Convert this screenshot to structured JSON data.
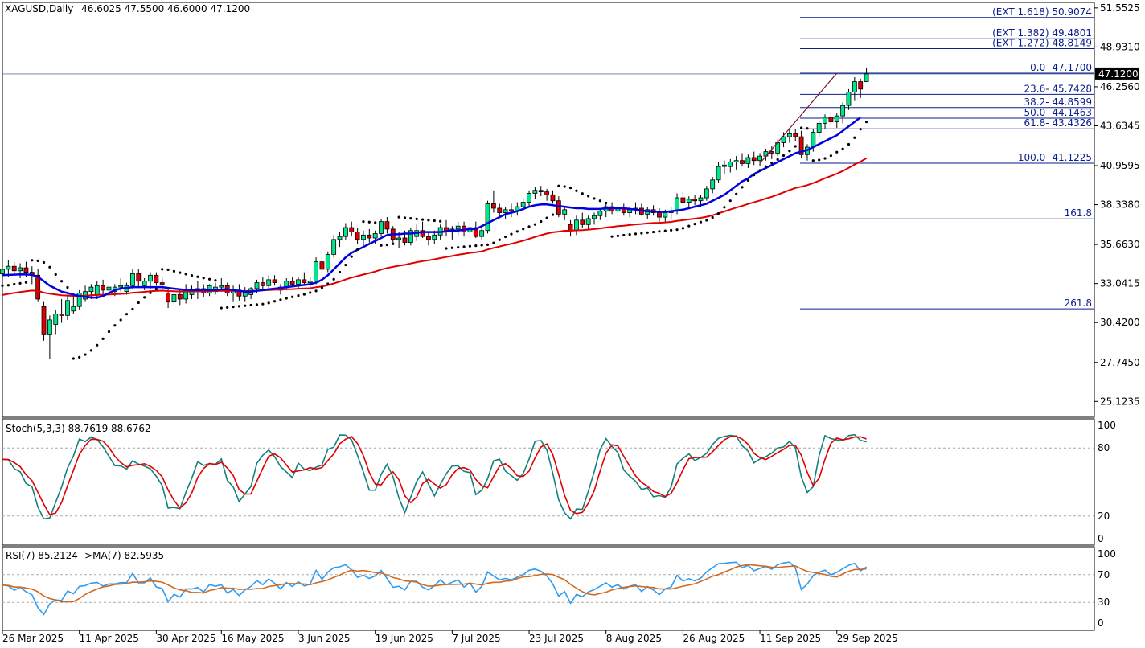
{
  "header": {
    "symbol_tf": "XAGUSD,Daily",
    "ohlc": "46.6025 47.5500 46.6000 47.1200"
  },
  "price_axis": {
    "labels": [
      "51.5525",
      "48.9310",
      "46.2560",
      "43.6345",
      "40.9595",
      "38.3380",
      "35.6630",
      "33.0415",
      "30.4200",
      "27.7450",
      "25.1235"
    ],
    "current_price_label": "47.1200"
  },
  "date_axis": {
    "labels": [
      "26 Mar 2025",
      "11 Apr 2025",
      "30 Apr 2025",
      "16 May 2025",
      "3 Jun 2025",
      "19 Jun 2025",
      "7 Jul 2025",
      "23 Jul 2025",
      "8 Aug 2025",
      "26 Aug 2025",
      "11 Sep 2025",
      "29 Sep 2025"
    ]
  },
  "fibonacci": {
    "levels": [
      {
        "label": "(EXT 1.618)  50.9074",
        "price": 50.9074
      },
      {
        "label": "(EXT 1.382)  49.4801",
        "price": 49.4801
      },
      {
        "label": "(EXT 1.272)  48.8149",
        "price": 48.8149
      },
      {
        "label": "0.0- 47.1700",
        "price": 47.17
      },
      {
        "label": "23.6- 45.7428",
        "price": 45.7428
      },
      {
        "label": "38.2- 44.8599",
        "price": 44.8599
      },
      {
        "label": "50.0- 44.1463",
        "price": 44.1463
      },
      {
        "label": "61.8- 43.4326",
        "price": 43.4326
      },
      {
        "label": "100.0- 41.1225",
        "price": 41.1225
      },
      {
        "label": "161.8",
        "price": 37.385
      },
      {
        "label": "261.8",
        "price": 31.34
      }
    ],
    "color": "#0a1e8c"
  },
  "stoch": {
    "label": "Stoch(5,3,3) 88.7619 88.6762",
    "levels": [
      "100",
      "80",
      "20",
      "0"
    ],
    "main_color": "#138080",
    "signal_color": "#e00000"
  },
  "rsi": {
    "label": "RSI(7) 85.2124  ->MA(7) 82.5935",
    "levels": [
      "100",
      "70",
      "30",
      "0"
    ],
    "rsi_color": "#2f9cf0",
    "ma_color": "#d2691e"
  },
  "colors": {
    "bull_candle": "#00e68a",
    "bear_candle": "#e00000",
    "ma_fast": "#0000e0",
    "ma_slow": "#e00000",
    "sar": "#000000"
  },
  "chart_data": {
    "type": "candlestick",
    "timeframe": "Daily",
    "candles_ohlc": [
      [
        33.7,
        34.3,
        33.3,
        34.0
      ],
      [
        34.0,
        34.6,
        33.5,
        34.2
      ],
      [
        34.2,
        34.5,
        33.6,
        33.9
      ],
      [
        33.9,
        34.4,
        33.4,
        34.1
      ],
      [
        34.1,
        34.5,
        33.5,
        33.8
      ],
      [
        33.8,
        34.2,
        33.0,
        33.6
      ],
      [
        33.6,
        34.0,
        31.8,
        32.0
      ],
      [
        31.5,
        31.8,
        29.2,
        29.6
      ],
      [
        29.6,
        30.9,
        28.0,
        30.6
      ],
      [
        30.3,
        31.3,
        29.6,
        31.0
      ],
      [
        31.0,
        32.0,
        30.4,
        30.9
      ],
      [
        30.9,
        32.3,
        30.6,
        31.9
      ],
      [
        31.2,
        32.4,
        31.0,
        31.5
      ],
      [
        31.5,
        32.6,
        31.3,
        32.4
      ],
      [
        32.0,
        32.9,
        31.8,
        32.5
      ],
      [
        32.5,
        33.0,
        32.0,
        32.8
      ],
      [
        32.3,
        33.2,
        32.0,
        32.9
      ],
      [
        32.9,
        33.3,
        32.3,
        32.6
      ],
      [
        32.6,
        33.1,
        32.2,
        32.8
      ],
      [
        32.5,
        33.0,
        32.2,
        32.8
      ],
      [
        32.8,
        33.4,
        32.5,
        32.9
      ],
      [
        32.5,
        33.1,
        32.3,
        32.9
      ],
      [
        32.9,
        34.0,
        32.7,
        33.7
      ],
      [
        33.7,
        34.0,
        32.8,
        33.2
      ],
      [
        32.9,
        33.4,
        32.6,
        33.2
      ],
      [
        33.2,
        33.8,
        32.7,
        33.6
      ],
      [
        33.6,
        33.8,
        32.9,
        33.1
      ],
      [
        33.1,
        33.4,
        32.6,
        33.0
      ],
      [
        32.4,
        32.7,
        31.4,
        31.8
      ],
      [
        31.8,
        32.8,
        31.6,
        32.3
      ],
      [
        32.3,
        32.6,
        31.6,
        32.0
      ],
      [
        32.0,
        33.0,
        31.7,
        32.6
      ],
      [
        32.3,
        32.9,
        32.0,
        32.6
      ],
      [
        32.6,
        33.2,
        32.0,
        32.7
      ],
      [
        32.7,
        33.0,
        32.1,
        32.4
      ],
      [
        32.4,
        33.0,
        32.2,
        32.9
      ],
      [
        32.5,
        33.1,
        32.3,
        32.8
      ],
      [
        32.8,
        33.4,
        32.5,
        32.9
      ],
      [
        32.9,
        33.1,
        32.2,
        32.4
      ],
      [
        32.4,
        32.9,
        31.8,
        32.6
      ],
      [
        32.6,
        33.0,
        31.9,
        32.2
      ],
      [
        32.2,
        32.8,
        31.8,
        32.5
      ],
      [
        32.3,
        32.8,
        32.0,
        32.7
      ],
      [
        32.7,
        33.3,
        32.4,
        33.1
      ],
      [
        33.1,
        33.5,
        32.6,
        32.9
      ],
      [
        32.9,
        33.6,
        32.7,
        33.3
      ],
      [
        33.3,
        33.6,
        32.9,
        33.1
      ],
      [
        32.6,
        33.0,
        32.3,
        32.8
      ],
      [
        32.8,
        33.4,
        32.6,
        33.2
      ],
      [
        33.2,
        33.5,
        32.8,
        33.0
      ],
      [
        33.0,
        33.5,
        32.7,
        33.3
      ],
      [
        33.3,
        33.8,
        33.0,
        33.1
      ],
      [
        33.1,
        33.5,
        32.8,
        33.2
      ],
      [
        33.2,
        34.8,
        33.0,
        34.5
      ],
      [
        34.5,
        34.9,
        33.8,
        34.0
      ],
      [
        34.0,
        35.2,
        33.8,
        35.0
      ],
      [
        35.0,
        36.3,
        34.8,
        36.0
      ],
      [
        36.0,
        36.5,
        35.5,
        36.2
      ],
      [
        36.2,
        37.1,
        36.0,
        36.8
      ],
      [
        36.8,
        37.2,
        36.2,
        36.5
      ],
      [
        36.5,
        36.8,
        35.7,
        36.0
      ],
      [
        36.0,
        36.6,
        35.6,
        36.3
      ],
      [
        36.3,
        36.7,
        35.8,
        36.1
      ],
      [
        36.1,
        36.6,
        35.7,
        36.4
      ],
      [
        36.4,
        37.4,
        36.2,
        37.2
      ],
      [
        37.2,
        37.5,
        36.4,
        36.7
      ],
      [
        36.7,
        36.9,
        35.8,
        36.0
      ],
      [
        36.0,
        36.5,
        35.4,
        36.1
      ],
      [
        36.1,
        36.6,
        35.6,
        35.8
      ],
      [
        35.8,
        36.8,
        35.6,
        36.6
      ],
      [
        36.2,
        37.0,
        35.9,
        36.6
      ],
      [
        36.6,
        37.2,
        36.1,
        36.2
      ],
      [
        36.2,
        36.5,
        35.6,
        36.0
      ],
      [
        36.0,
        36.6,
        35.7,
        36.3
      ],
      [
        36.3,
        37.0,
        36.0,
        36.8
      ],
      [
        36.8,
        37.3,
        36.2,
        36.5
      ],
      [
        36.5,
        36.9,
        36.0,
        36.7
      ],
      [
        36.7,
        37.2,
        36.3,
        36.9
      ],
      [
        36.9,
        37.2,
        36.2,
        36.5
      ],
      [
        36.5,
        37.1,
        36.3,
        36.8
      ],
      [
        36.8,
        37.2,
        36.1,
        36.2
      ],
      [
        36.2,
        36.9,
        36.0,
        36.6
      ],
      [
        36.6,
        38.6,
        36.4,
        38.4
      ],
      [
        38.4,
        39.3,
        37.8,
        38.1
      ],
      [
        38.1,
        38.4,
        37.5,
        37.8
      ],
      [
        37.8,
        38.2,
        37.4,
        38.0
      ],
      [
        38.0,
        38.4,
        37.5,
        37.9
      ],
      [
        37.9,
        38.5,
        37.6,
        38.2
      ],
      [
        38.2,
        38.8,
        37.9,
        38.5
      ],
      [
        38.5,
        39.3,
        38.2,
        39.1
      ],
      [
        39.1,
        39.5,
        38.7,
        39.3
      ],
      [
        39.3,
        39.6,
        38.9,
        39.2
      ],
      [
        39.2,
        39.4,
        38.6,
        39.0
      ],
      [
        39.0,
        39.3,
        38.4,
        38.6
      ],
      [
        38.6,
        38.9,
        37.5,
        37.7
      ],
      [
        37.7,
        38.2,
        37.3,
        38.0
      ],
      [
        37.0,
        37.3,
        36.2,
        36.6
      ],
      [
        36.6,
        37.6,
        36.3,
        37.3
      ],
      [
        37.3,
        37.8,
        36.8,
        37.0
      ],
      [
        37.0,
        37.6,
        36.7,
        37.4
      ],
      [
        37.4,
        37.8,
        37.0,
        37.6
      ],
      [
        37.6,
        38.1,
        37.3,
        37.9
      ],
      [
        37.9,
        38.4,
        37.5,
        38.2
      ],
      [
        38.2,
        38.5,
        37.7,
        37.9
      ],
      [
        37.9,
        38.3,
        37.5,
        38.1
      ],
      [
        38.1,
        38.4,
        37.6,
        37.8
      ],
      [
        37.8,
        38.2,
        37.5,
        38.0
      ],
      [
        38.0,
        38.5,
        37.7,
        38.1
      ],
      [
        38.1,
        38.4,
        37.6,
        37.7
      ],
      [
        37.7,
        38.2,
        37.4,
        38.0
      ],
      [
        38.0,
        38.3,
        37.6,
        37.8
      ],
      [
        37.8,
        38.1,
        37.2,
        37.5
      ],
      [
        37.5,
        38.0,
        37.2,
        37.8
      ],
      [
        37.8,
        38.2,
        37.4,
        37.9
      ],
      [
        37.9,
        39.1,
        37.7,
        38.8
      ],
      [
        38.8,
        39.2,
        38.3,
        38.5
      ],
      [
        38.5,
        38.9,
        38.2,
        38.7
      ],
      [
        38.7,
        39.0,
        38.3,
        38.6
      ],
      [
        38.6,
        39.0,
        38.2,
        38.8
      ],
      [
        38.8,
        39.6,
        38.6,
        39.4
      ],
      [
        39.4,
        40.2,
        39.1,
        40.0
      ],
      [
        40.0,
        41.2,
        39.8,
        40.9
      ],
      [
        40.9,
        41.3,
        40.4,
        41.0
      ],
      [
        40.9,
        41.4,
        40.5,
        41.2
      ],
      [
        41.2,
        41.6,
        40.7,
        41.3
      ],
      [
        41.3,
        41.8,
        40.9,
        41.1
      ],
      [
        41.1,
        41.7,
        40.8,
        41.5
      ],
      [
        41.5,
        41.9,
        41.0,
        41.3
      ],
      [
        41.3,
        41.8,
        40.9,
        41.6
      ],
      [
        41.6,
        42.1,
        41.3,
        41.9
      ],
      [
        41.9,
        42.3,
        41.4,
        41.8
      ],
      [
        41.8,
        42.7,
        41.6,
        42.5
      ],
      [
        42.5,
        43.2,
        42.2,
        42.9
      ],
      [
        42.9,
        43.5,
        42.5,
        43.1
      ],
      [
        43.1,
        43.4,
        42.6,
        42.9
      ],
      [
        42.9,
        43.3,
        41.5,
        41.7
      ],
      [
        41.7,
        42.4,
        41.3,
        42.2
      ],
      [
        42.2,
        43.4,
        41.9,
        43.2
      ],
      [
        43.2,
        44.0,
        42.9,
        43.8
      ],
      [
        43.8,
        44.4,
        43.4,
        44.2
      ],
      [
        44.2,
        44.6,
        43.7,
        43.9
      ],
      [
        43.9,
        44.5,
        43.5,
        44.3
      ],
      [
        44.3,
        45.2,
        43.8,
        45.0
      ],
      [
        45.0,
        46.1,
        44.7,
        45.9
      ],
      [
        45.9,
        46.9,
        45.3,
        46.6
      ],
      [
        46.6,
        46.8,
        45.5,
        46.1
      ],
      [
        46.6,
        47.55,
        46.6,
        47.12
      ]
    ],
    "moving_average_fast": [
      33.6,
      33.62,
      33.64,
      33.66,
      33.65,
      33.62,
      33.5,
      33.2,
      32.9,
      32.7,
      32.5,
      32.4,
      32.3,
      32.2,
      32.15,
      32.1,
      32.1,
      32.2,
      32.4,
      32.6,
      32.7,
      32.75,
      32.8,
      32.8,
      32.8,
      32.8,
      32.8,
      32.8,
      32.75,
      32.7,
      32.65,
      32.6,
      32.6,
      32.6,
      32.6,
      32.6,
      32.6,
      32.65,
      32.65,
      32.6,
      32.55,
      32.5,
      32.5,
      32.55,
      32.6,
      32.65,
      32.7,
      32.75,
      32.8,
      32.85,
      32.9,
      32.95,
      33.0,
      33.1,
      33.3,
      33.6,
      34.0,
      34.4,
      34.8,
      35.1,
      35.3,
      35.5,
      35.7,
      35.9,
      36.1,
      36.3,
      36.35,
      36.35,
      36.4,
      36.4,
      36.45,
      36.5,
      36.5,
      36.5,
      36.5,
      36.55,
      36.6,
      36.6,
      36.65,
      36.7,
      36.7,
      36.9,
      37.1,
      37.3,
      37.5,
      37.7,
      37.8,
      37.9,
      38.05,
      38.2,
      38.3,
      38.35,
      38.35,
      38.3,
      38.25,
      38.2,
      38.15,
      38.1,
      38.1,
      38.05,
      38.05,
      38.05,
      38.1,
      38.1,
      38.1,
      38.1,
      38.05,
      38.0,
      37.95,
      37.9,
      37.88,
      37.86,
      37.85,
      37.9,
      37.95,
      38.0,
      38.1,
      38.2,
      38.3,
      38.4,
      38.6,
      38.8,
      39.0,
      39.3,
      39.6,
      39.9,
      40.1,
      40.4,
      40.6,
      40.8,
      41.0,
      41.2,
      41.4,
      41.6,
      41.8,
      41.9,
      42.0,
      42.2,
      42.4,
      42.6,
      42.8,
      43.0,
      43.3,
      43.6,
      43.9,
      44.2
    ]
  }
}
